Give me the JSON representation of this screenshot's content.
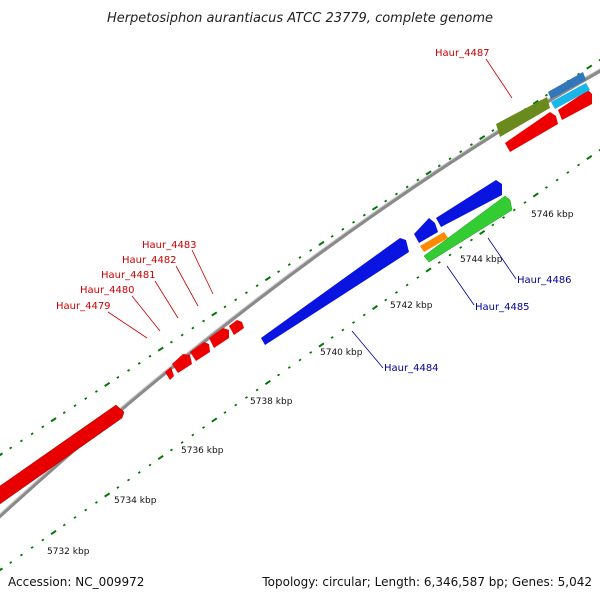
{
  "title": "Herpetosiphon aurantiacus ATCC 23779, complete genome",
  "footer": {
    "accession": "Accession: NC_009972",
    "topology": "Topology: circular; Length: 6,346,587 bp; Genes: 5,042"
  },
  "colors": {
    "forward_label": "#cc0000",
    "reverse_label": "#000099",
    "forward_gene": "#ff0000",
    "reverse_gene": "#0000ee",
    "backbone": "#888888",
    "tick": "#007700"
  },
  "ticks": [
    {
      "label": "5732 kbp"
    },
    {
      "label": "5734 kbp"
    },
    {
      "label": "5736 kbp"
    },
    {
      "label": "5738 kbp"
    },
    {
      "label": "5740 kbp"
    },
    {
      "label": "5742 kbp"
    },
    {
      "label": "5744 kbp"
    },
    {
      "label": "5746 kbp"
    }
  ],
  "gene_labels": [
    {
      "name": "Haur_4479",
      "strand": "forward"
    },
    {
      "name": "Haur_4480",
      "strand": "forward"
    },
    {
      "name": "Haur_4481",
      "strand": "forward"
    },
    {
      "name": "Haur_4482",
      "strand": "forward"
    },
    {
      "name": "Haur_4483",
      "strand": "forward"
    },
    {
      "name": "Haur_4484",
      "strand": "reverse"
    },
    {
      "name": "Haur_4485",
      "strand": "reverse"
    },
    {
      "name": "Haur_4486",
      "strand": "reverse"
    },
    {
      "name": "Haur_4487",
      "strand": "forward"
    }
  ]
}
